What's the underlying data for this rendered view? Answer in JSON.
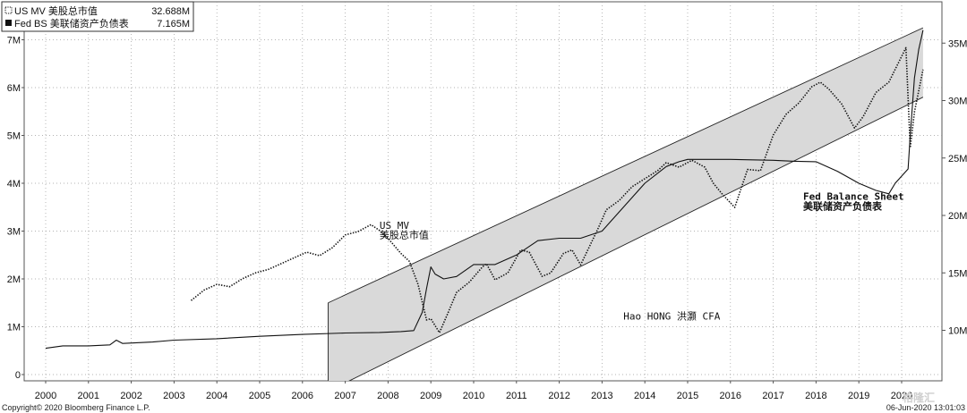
{
  "chart_data": {
    "type": "line",
    "x_ticks": [
      "2000",
      "2001",
      "2002",
      "2003",
      "2004",
      "2005",
      "2006",
      "2007",
      "2008",
      "2009",
      "2010",
      "2011",
      "2012",
      "2013",
      "2014",
      "2015",
      "2016",
      "2017",
      "2018",
      "2019",
      "2020"
    ],
    "y_left_ticks": [
      "0",
      "1M",
      "2M",
      "3M",
      "4M",
      "5M",
      "6M",
      "7M"
    ],
    "y_right_ticks": [
      "10M",
      "15M",
      "20M",
      "25M",
      "30M",
      "35M"
    ],
    "ylim_left": [
      0,
      7.5
    ],
    "ylim_right": [
      6.5,
      38.5
    ],
    "grid": true,
    "legend_position": "top-left",
    "legend": [
      {
        "name": "US MV 美股总市值",
        "value": "32.688M",
        "style": "dotted"
      },
      {
        "name": "Fed BS 美联储资产负债表",
        "value": "7.165M",
        "style": "solid"
      }
    ],
    "series": [
      {
        "name": "US MV 美股总市值",
        "axis": "right",
        "style": "dotted",
        "x": [
          2003.4,
          2003.7,
          2004.0,
          2004.3,
          2004.6,
          2004.9,
          2005.2,
          2005.5,
          2005.8,
          2006.1,
          2006.4,
          2006.7,
          2007.0,
          2007.3,
          2007.6,
          2007.8,
          2008.0,
          2008.3,
          2008.5,
          2008.7,
          2008.9,
          2009.0,
          2009.2,
          2009.4,
          2009.6,
          2009.9,
          2010.2,
          2010.3,
          2010.5,
          2010.8,
          2011.1,
          2011.3,
          2011.6,
          2011.8,
          2012.1,
          2012.3,
          2012.5,
          2012.9,
          2013.1,
          2013.4,
          2013.7,
          2014.0,
          2014.3,
          2014.5,
          2014.8,
          2015.1,
          2015.4,
          2015.6,
          2015.8,
          2016.1,
          2016.4,
          2016.7,
          2017.0,
          2017.3,
          2017.6,
          2017.9,
          2018.1,
          2018.3,
          2018.6,
          2018.9,
          2019.1,
          2019.4,
          2019.7,
          2019.9,
          2020.1,
          2020.2,
          2020.3,
          2020.5
        ],
        "y": [
          12.6,
          13.5,
          14.0,
          13.8,
          14.5,
          15.0,
          15.3,
          15.8,
          16.3,
          16.8,
          16.5,
          17.2,
          18.3,
          18.6,
          19.2,
          18.7,
          18.0,
          16.7,
          16.0,
          14.0,
          10.9,
          11.0,
          9.8,
          11.5,
          13.3,
          14.2,
          15.5,
          15.8,
          14.4,
          15.0,
          17.0,
          16.8,
          14.7,
          15.0,
          16.7,
          17.0,
          15.7,
          18.8,
          20.5,
          21.3,
          22.5,
          23.2,
          23.9,
          24.6,
          24.2,
          24.8,
          24.2,
          22.8,
          21.9,
          20.7,
          24.0,
          23.9,
          27.0,
          28.8,
          29.8,
          31.2,
          31.6,
          31.0,
          29.7,
          27.6,
          28.6,
          30.7,
          31.6,
          33.1,
          34.6,
          25.9,
          29.0,
          32.7
        ]
      },
      {
        "name": "Fed BS 美联储资产负债表",
        "axis": "left",
        "style": "solid",
        "x": [
          2000.0,
          2000.4,
          2001.0,
          2001.5,
          2001.65,
          2001.8,
          2002.5,
          2003.0,
          2004.0,
          2005.0,
          2006.0,
          2007.0,
          2007.8,
          2008.3,
          2008.6,
          2008.8,
          2008.9,
          2009.0,
          2009.1,
          2009.3,
          2009.6,
          2010.0,
          2010.5,
          2011.0,
          2011.5,
          2012.0,
          2012.5,
          2013.0,
          2013.5,
          2014.0,
          2014.5,
          2014.8,
          2015.0,
          2016.0,
          2017.0,
          2017.5,
          2018.0,
          2018.5,
          2019.0,
          2019.4,
          2019.7,
          2019.85,
          2020.0,
          2020.15,
          2020.2,
          2020.3,
          2020.4,
          2020.5
        ],
        "y": [
          0.55,
          0.6,
          0.6,
          0.62,
          0.72,
          0.65,
          0.68,
          0.72,
          0.75,
          0.8,
          0.84,
          0.87,
          0.88,
          0.9,
          0.92,
          1.3,
          1.8,
          2.25,
          2.1,
          2.0,
          2.05,
          2.3,
          2.3,
          2.5,
          2.8,
          2.85,
          2.85,
          3.0,
          3.5,
          4.0,
          4.35,
          4.45,
          4.5,
          4.5,
          4.48,
          4.46,
          4.45,
          4.25,
          4.0,
          3.85,
          3.78,
          4.0,
          4.15,
          4.3,
          5.0,
          6.2,
          6.8,
          7.2
        ]
      }
    ],
    "channel": {
      "axis": "left",
      "x_start": 2006.6,
      "x_end": 2020.5,
      "upper": [
        1.5,
        7.25
      ],
      "lower": [
        -0.35,
        5.8
      ]
    },
    "annotations": [
      {
        "text": "US MV",
        "x": 2007.8,
        "y": 3.05,
        "bold": false
      },
      {
        "text": "美股总市值",
        "x": 2007.8,
        "y": 2.85,
        "bold": false
      },
      {
        "text": "Hao HONG 洪灝 CFA",
        "x": 2013.5,
        "y": 1.15,
        "bold": false
      },
      {
        "text": "Fed Balance Sheet",
        "x": 2017.7,
        "y": 3.65,
        "bold": true
      },
      {
        "text": "美联储资产负债表",
        "x": 2017.7,
        "y": 3.45,
        "bold": true
      }
    ]
  },
  "footer": {
    "copyright": "Copyright© 2020 Bloomberg Finance L.P.",
    "timestamp": "06-Jun-2020 13:01:03",
    "watermark": "格隆汇"
  },
  "colors": {
    "line": "#111111",
    "channel_fill": "#d9d9d9",
    "grid": "#9a9a9a",
    "background": "#ffffff"
  }
}
